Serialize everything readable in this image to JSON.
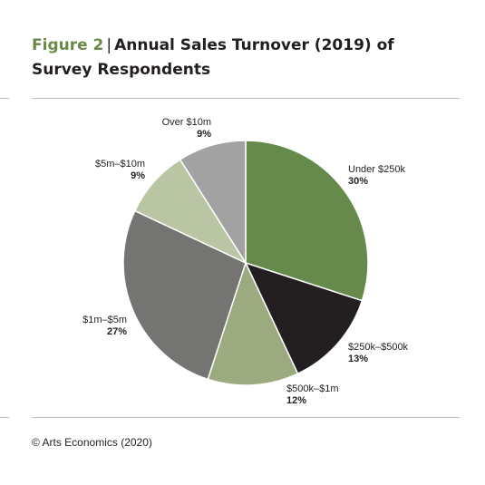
{
  "figure": {
    "number": "Figure 2",
    "title": "Annual Sales Turnover (2019) of Survey Respondents",
    "source": "© Arts Economics (2020)"
  },
  "chart_data": {
    "type": "pie",
    "title": "Annual Sales Turnover (2019) of Survey Respondents",
    "slices": [
      {
        "label": "Under $250k",
        "value": 30,
        "value_label": "30%",
        "color": "#668a4b"
      },
      {
        "label": "$250k–$500k",
        "value": 13,
        "value_label": "13%",
        "color": "#231f20"
      },
      {
        "label": "$500k–$1m",
        "value": 12,
        "value_label": "12%",
        "color": "#9bab7f"
      },
      {
        "label": "$1m–$5m",
        "value": 27,
        "value_label": "27%",
        "color": "#747572"
      },
      {
        "label": "$5m–$10m",
        "value": 9,
        "value_label": "9%",
        "color": "#bac5a3"
      },
      {
        "label": "Over $10m",
        "value": 9,
        "value_label": "9%",
        "color": "#a2a2a2"
      }
    ],
    "start": "12 o'clock",
    "direction": "clockwise"
  }
}
